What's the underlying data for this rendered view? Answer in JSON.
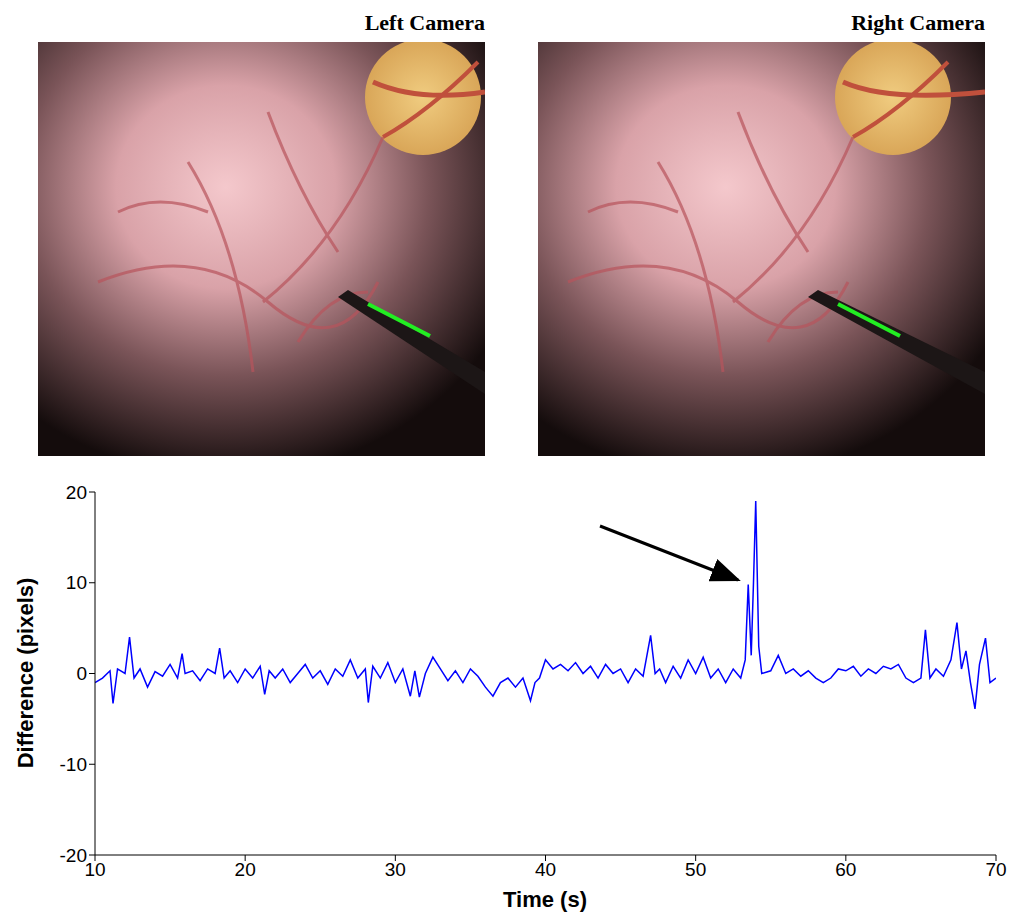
{
  "panels": [
    {
      "title": "Left Camera"
    },
    {
      "title": "Right Camera"
    }
  ],
  "chart_data": {
    "type": "line",
    "x_label": "Time (s)",
    "y_label": "Difference (pixels)",
    "x": [
      10,
      10.5,
      11,
      11.2,
      11.5,
      12,
      12.3,
      12.6,
      13,
      13.5,
      14,
      14.5,
      15,
      15.5,
      15.8,
      16,
      16.5,
      17,
      17.5,
      18,
      18.3,
      18.6,
      19,
      19.5,
      20,
      20.5,
      21,
      21.3,
      21.6,
      22,
      22.5,
      23,
      23.5,
      24,
      24.5,
      25,
      25.5,
      26,
      26.5,
      27,
      27.5,
      28,
      28.2,
      28.5,
      29,
      29.5,
      30,
      30.5,
      31,
      31.3,
      31.6,
      32,
      32.5,
      33,
      33.5,
      34,
      34.5,
      35,
      35.5,
      36,
      36.5,
      37,
      37.5,
      38,
      38.5,
      39,
      39.3,
      39.6,
      40,
      40.5,
      41,
      41.5,
      42,
      42.5,
      43,
      43.5,
      44,
      44.5,
      45,
      45.5,
      46,
      46.5,
      47,
      47.3,
      47.6,
      48,
      48.5,
      49,
      49.5,
      50,
      50.5,
      51,
      51.5,
      52,
      52.5,
      53,
      53.3,
      53.5,
      53.7,
      53.85,
      54,
      54.2,
      54.4,
      55,
      55.5,
      56,
      56.5,
      57,
      57.5,
      58,
      58.5,
      59,
      59.5,
      60,
      60.5,
      61,
      61.5,
      62,
      62.5,
      63,
      63.5,
      64,
      64.5,
      65,
      65.3,
      65.6,
      66,
      66.5,
      67,
      67.4,
      67.7,
      68,
      68.3,
      68.6,
      68.9,
      69.3,
      69.6,
      70
    ],
    "series": [
      {
        "color": "#0000ff",
        "values": [
          -1,
          -0.5,
          0.3,
          -3.3,
          0.5,
          0,
          4,
          -0.5,
          0.5,
          -1.5,
          0.2,
          -0.3,
          1,
          -0.5,
          2.2,
          0,
          0.3,
          -0.8,
          0.5,
          0,
          2.8,
          -0.5,
          0.3,
          -1,
          0.5,
          -0.5,
          0.8,
          -2.3,
          0.3,
          -0.5,
          0.5,
          -1,
          0,
          1,
          -0.5,
          0.3,
          -1.2,
          0.5,
          -0.3,
          1.5,
          -0.5,
          0.5,
          -3.2,
          0.8,
          -0.5,
          1.2,
          -1,
          0.5,
          -2.5,
          0.3,
          -2.6,
          0,
          1.8,
          0.5,
          -0.8,
          0.3,
          -1,
          0.5,
          -0.3,
          -1.5,
          -2.5,
          -1,
          -0.5,
          -1.5,
          -0.5,
          -3,
          -1,
          -0.5,
          1.5,
          0.5,
          1,
          0.3,
          1.2,
          0,
          0.8,
          -0.5,
          1,
          0,
          0.5,
          -1,
          0.5,
          -0.3,
          4.2,
          0,
          0.5,
          -1,
          0.8,
          -0.5,
          1.5,
          0,
          1.8,
          -0.5,
          0.5,
          -1,
          0.5,
          -0.5,
          1.5,
          9.8,
          2,
          10,
          19,
          3,
          0,
          0.3,
          2,
          0,
          0.5,
          -0.3,
          0.3,
          -0.5,
          -1,
          -0.5,
          0.5,
          0.3,
          0.8,
          -0.3,
          0.5,
          0,
          0.8,
          0.5,
          1,
          -0.5,
          -1,
          -0.5,
          4.8,
          -0.5,
          0.5,
          -0.3,
          1.5,
          5.6,
          0.5,
          2.5,
          -1,
          -3.9,
          1,
          3.9,
          -1,
          -0.5
        ]
      }
    ],
    "xlim": [
      10,
      70
    ],
    "xticks": [
      10,
      20,
      30,
      40,
      50,
      60,
      70
    ],
    "ylim": [
      -20,
      20
    ],
    "yticks": [
      -20,
      -10,
      0,
      10,
      20
    ],
    "grid": false
  }
}
